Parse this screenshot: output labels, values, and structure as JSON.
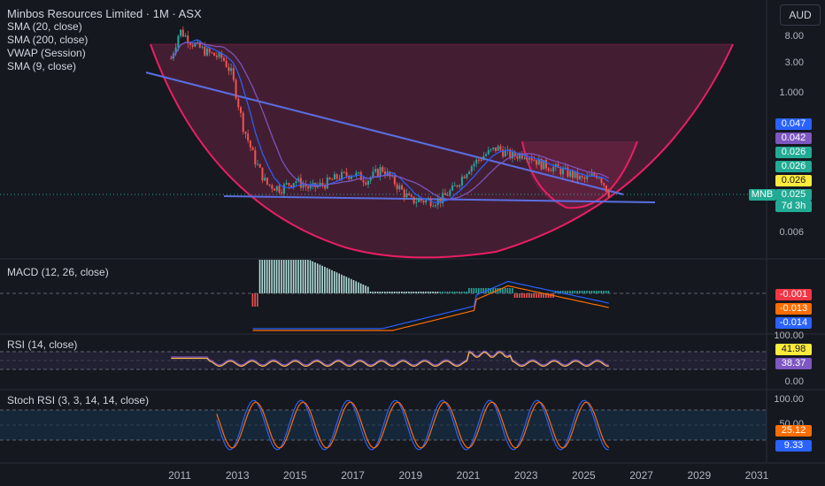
{
  "header": {
    "title": "Minbos Resources Limited · 1M · ASX",
    "currency": "AUD"
  },
  "main_pane": {
    "indicators": [
      "SMA (20, close)",
      "SMA (200, close)",
      "VWAP (Session)",
      "SMA (9, close)"
    ],
    "price_badges": [
      {
        "value": "0.047",
        "color": "#2962ff"
      },
      {
        "value": "0.042",
        "color": "#7e57c2"
      },
      {
        "value": "0.026",
        "color": "#22ab94"
      },
      {
        "value": "0.026",
        "color": "#22ab94"
      },
      {
        "value": "0.026",
        "color": "#ffeb3b"
      },
      {
        "value": "0.025",
        "color": "#22ab94"
      }
    ],
    "symbol": "MNB",
    "countdown": "7d 3h",
    "y_ticks": [
      "8.00",
      "3.00",
      "1.000",
      "0.006"
    ]
  },
  "macd_pane": {
    "title": "MACD (12, 26, close)",
    "badges": [
      {
        "value": "-0.001",
        "color": "#f23645"
      },
      {
        "value": "-0.013",
        "color": "#ff6d00"
      },
      {
        "value": "-0.014",
        "color": "#2962ff"
      }
    ]
  },
  "rsi_pane": {
    "title": "RSI (14, close)",
    "y_ticks": [
      "100.00",
      "0.00"
    ],
    "badges": [
      {
        "value": "41.98",
        "color": "#ffeb3b"
      },
      {
        "value": "38.37",
        "color": "#7e57c2"
      }
    ]
  },
  "stoch_pane": {
    "title": "Stoch RSI (3, 3, 14, 14, close)",
    "y_ticks": [
      "100.00",
      "50.00"
    ],
    "badges": [
      {
        "value": "25.12",
        "color": "#ff6d00"
      },
      {
        "value": "9.33",
        "color": "#2962ff"
      }
    ]
  },
  "x_axis": {
    "labels": [
      "2011",
      "2013",
      "2015",
      "2017",
      "2019",
      "2021",
      "2023",
      "2025",
      "2027",
      "2029",
      "2031"
    ]
  },
  "chart_data": {
    "type": "line",
    "title": "Minbos Resources Limited · 1M · ASX",
    "x": [
      2010.7,
      2011.0,
      2011.5,
      2012.0,
      2012.5,
      2012.8,
      2013.2,
      2013.6,
      2014.0,
      2014.5,
      2015.0,
      2015.5,
      2016.0,
      2016.5,
      2017.0,
      2017.5,
      2018.0,
      2018.5,
      2019.0,
      2019.5,
      2020.0,
      2020.5,
      2021.0,
      2021.5,
      2022.0,
      2022.5,
      2023.0,
      2023.5,
      2024.0,
      2024.5,
      2025.0,
      2025.5,
      2025.9
    ],
    "series": [
      {
        "name": "",
        "values": [
          2.5,
          6.5,
          4.0,
          3.0,
          2.5,
          1.5,
          0.25,
          0.08,
          0.035,
          0.03,
          0.04,
          0.03,
          0.035,
          0.045,
          0.05,
          0.04,
          0.06,
          0.035,
          0.02,
          0.02,
          0.02,
          0.03,
          0.06,
          0.09,
          0.12,
          0.09,
          0.1,
          0.07,
          0.06,
          0.05,
          0.04,
          0.05,
          0.025
        ]
      }
    ],
    "y_scale": "log",
    "ylim": [
      0.003,
      10
    ],
    "xlim": [
      2010,
      2031.5
    ]
  }
}
